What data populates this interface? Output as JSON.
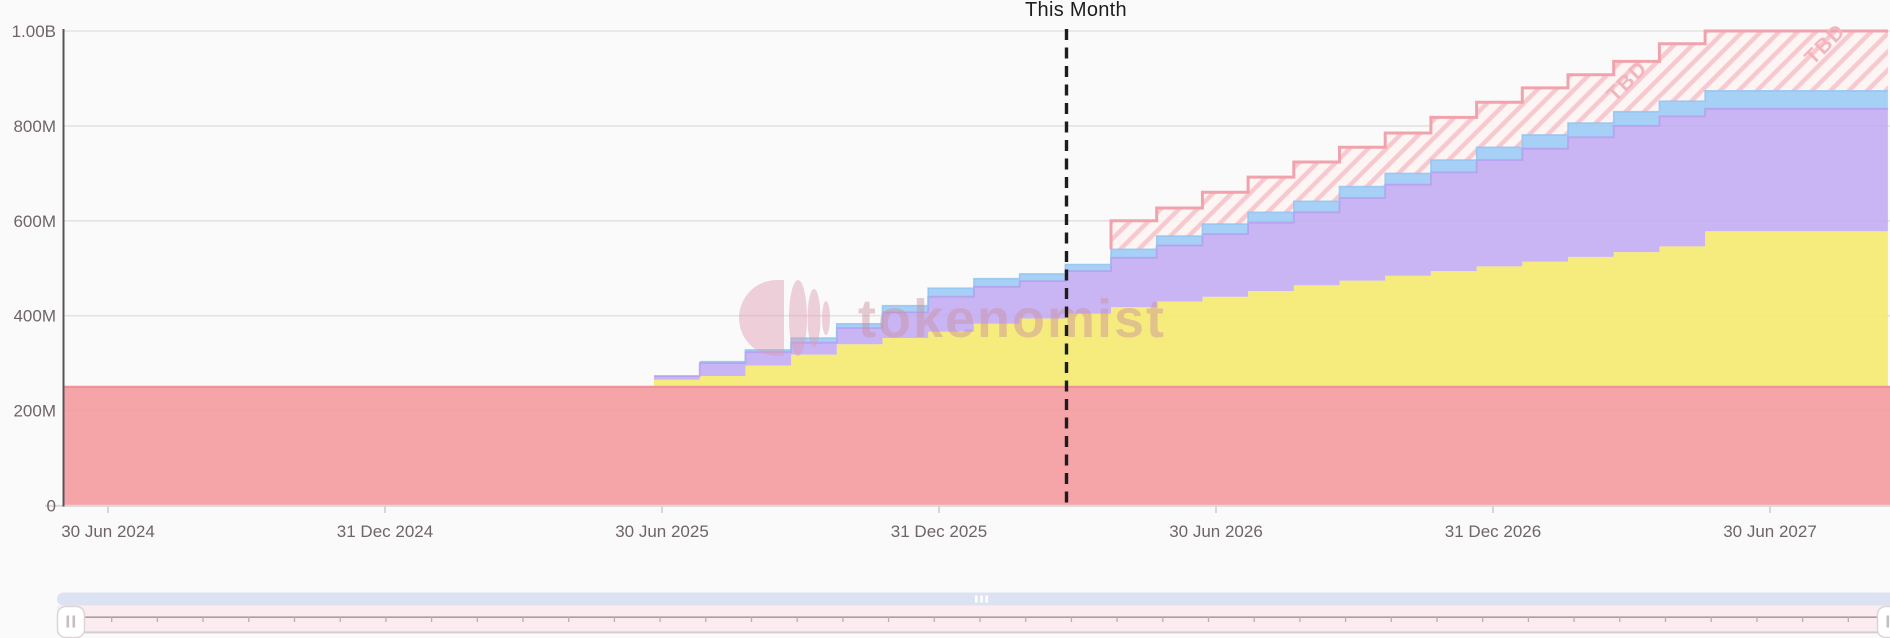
{
  "chart": {
    "this_month_label": "This Month",
    "watermark_text": "tokenomist",
    "tbd_label": "TBD",
    "y_axis_labels": [
      "1.00B",
      "800M",
      "600M",
      "400M",
      "200M",
      "0"
    ],
    "x_axis_labels": [
      "30 Jun 2024",
      "31 Dec 2024",
      "30 Jun 2025",
      "31 Dec 2025",
      "30 Jun 2026",
      "31 Dec 2026",
      "30 Jun 2027"
    ]
  },
  "chart_data": {
    "type": "area",
    "variant": "stacked-step-monthly-unlock-schedule",
    "ylim": [
      0,
      1000
    ],
    "y_unit": "M (millions of tokens, B = billions)",
    "x_range": [
      "30 Jun 2024",
      "Aug 2027"
    ],
    "grid": "horizontal-only",
    "this_month_marker": "between Mar 2026 and Apr 2026",
    "red_band_constant_value": 250,
    "red_band_note_span": "flat from left edge (pre Jun 2024) to right edge",
    "step_months": [
      "Jun 2025",
      "Jul 2025",
      "Aug 2025",
      "Sep 2025",
      "Oct 2025",
      "Nov 2025",
      "Dec 2025",
      "Jan 2026",
      "Feb 2026",
      "Mar 2026",
      "Apr 2026",
      "May 2026",
      "Jun 2026",
      "Jul 2026",
      "Aug 2026",
      "Sep 2026",
      "Oct 2026",
      "Nov 2026",
      "Dec 2026",
      "Jan 2027",
      "Feb 2027",
      "Mar 2027",
      "Apr 2027",
      "May 2027",
      "Jun 2027",
      "Jul 2027",
      "Aug 2027"
    ],
    "cumulative_tops": {
      "yellow": [
        265,
        273,
        295,
        318,
        340,
        353,
        366,
        383,
        394,
        404,
        418,
        430,
        440,
        452,
        464,
        474,
        484,
        494,
        504,
        514,
        524,
        534,
        546,
        578,
        578,
        578,
        578
      ],
      "purple": [
        273,
        300,
        323,
        343,
        374,
        407,
        440,
        461,
        473,
        494,
        522,
        548,
        572,
        596,
        618,
        648,
        676,
        702,
        728,
        752,
        776,
        800,
        820,
        836,
        836,
        836,
        836
      ],
      "blue": [
        273,
        303,
        328,
        353,
        383,
        421,
        458,
        478,
        488,
        508,
        540,
        568,
        593,
        618,
        641,
        672,
        700,
        728,
        755,
        781,
        806,
        830,
        852,
        874,
        874,
        874,
        874
      ],
      "tbd": [
        null,
        null,
        null,
        null,
        null,
        null,
        null,
        null,
        null,
        null,
        600,
        627,
        660,
        692,
        724,
        755,
        785,
        818,
        850,
        880,
        908,
        936,
        973,
        1000,
        1000,
        1000,
        1000
      ]
    }
  },
  "colors": {
    "red_area": "#f49a9e",
    "yellow_area": "#f5ea6f",
    "purple_area": "#c3adf2",
    "blue_area": "#9ccbf5",
    "red_edge": "#ee9298",
    "purple_edge": "#b49ced",
    "blue_edge": "#8ec2f0",
    "tbd_fill": "#fdf2f3",
    "tbd_hatch": "#f7c9ce",
    "tbd_border": "#f0a3ac",
    "dashed_line": "#1d1d1d",
    "gridline": "#e7e1e2",
    "axis_line": "#55545c",
    "axis_text": "#6f6468",
    "navigator_track": "#dce2f1",
    "navigator_mini_bg": "#fbecef",
    "navigator_axis_line": "#a89fa4"
  },
  "navigator": {
    "left_handle": "drag-handle",
    "right_handle": "drag-handle",
    "center_grip": "grip"
  }
}
